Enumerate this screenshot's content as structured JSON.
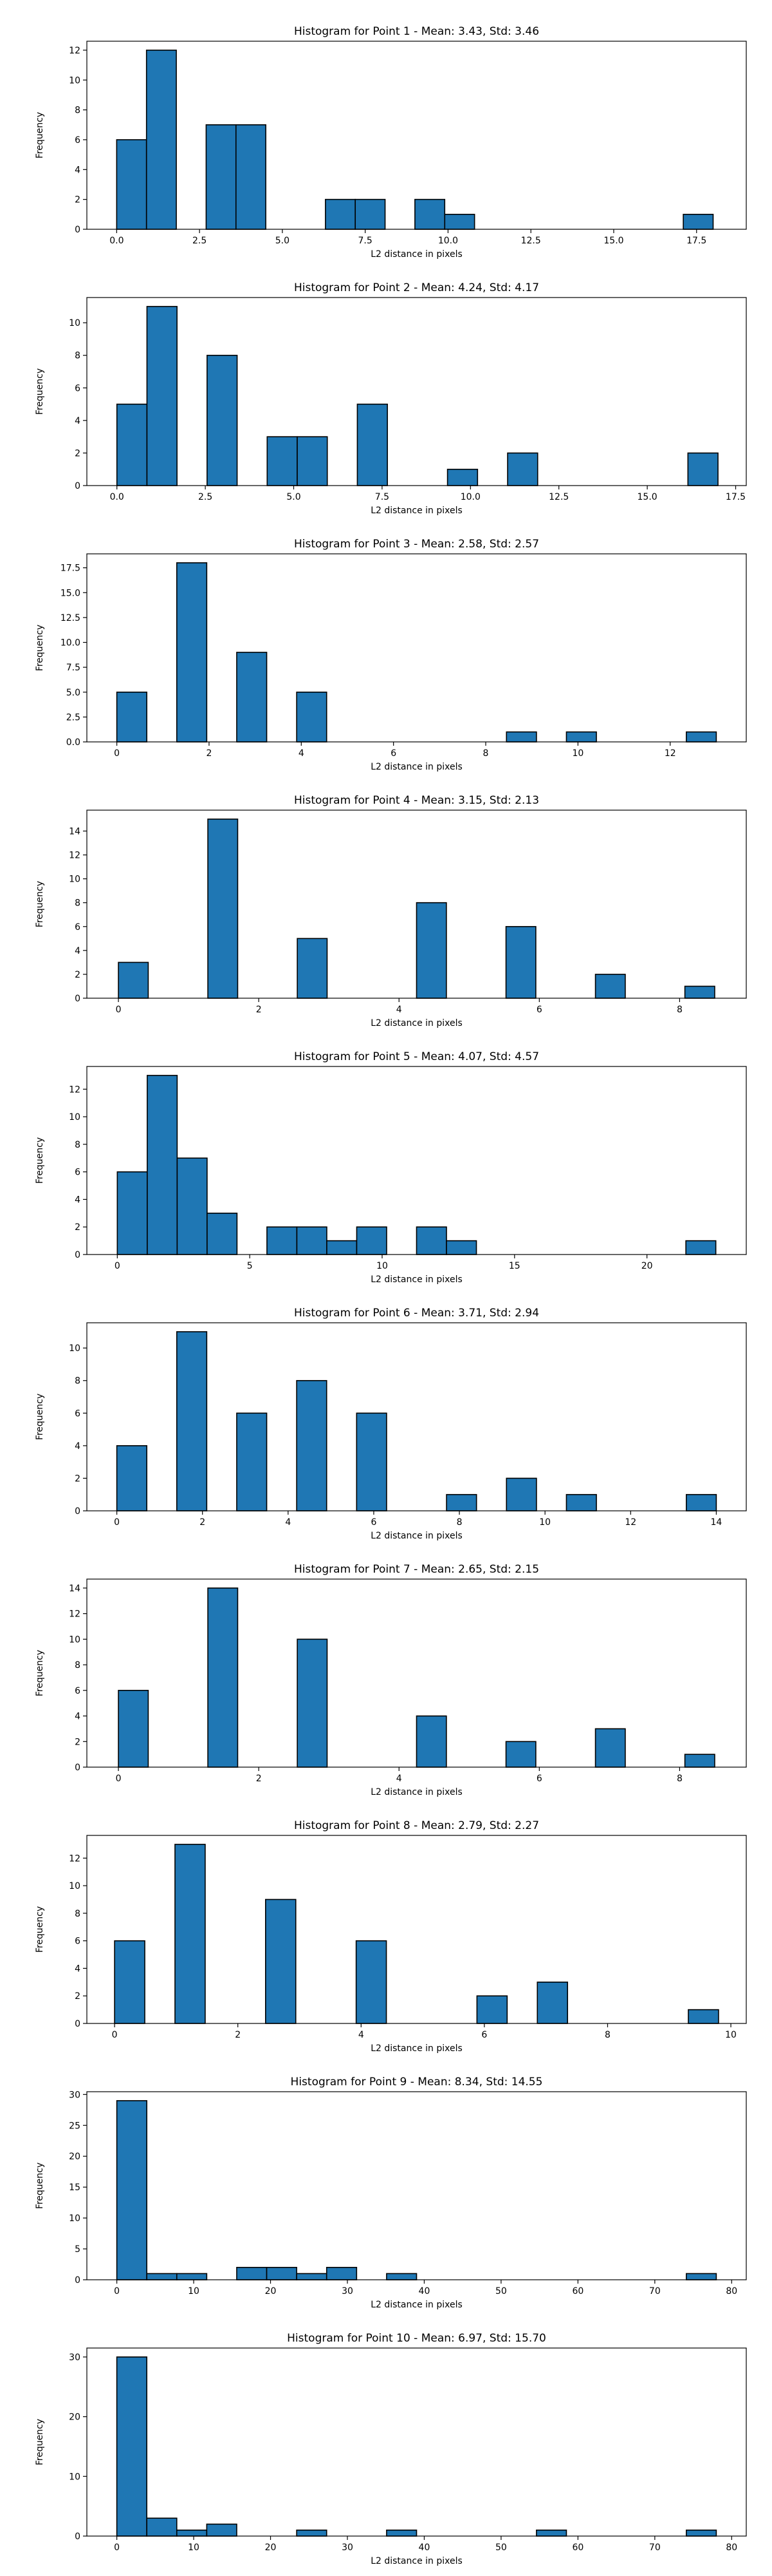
{
  "figure": {
    "background": "#ffffff",
    "bar_color": "#1f77b4",
    "bar_edge_color": "#000000"
  },
  "chart_data": [
    {
      "type": "bar",
      "title": "Histogram for Point 1 - Mean: 3.43, Std: 3.46",
      "xlabel": "L2 distance in pixels",
      "ylabel": "Frequency",
      "xlim": [
        -0.9,
        19.0
      ],
      "ylim": [
        0,
        12.6
      ],
      "xticks": [
        0.0,
        2.5,
        5.0,
        7.5,
        10.0,
        12.5,
        15.0,
        17.5
      ],
      "xticklabels": [
        "0.0",
        "2.5",
        "5.0",
        "7.5",
        "10.0",
        "12.5",
        "15.0",
        "17.5"
      ],
      "yticks": [
        0,
        2,
        4,
        6,
        8,
        10,
        12
      ],
      "yticklabels": [
        "0",
        "2",
        "4",
        "6",
        "8",
        "10",
        "12"
      ],
      "bin_edges": [
        0,
        0.9,
        1.8,
        2.7,
        3.6,
        4.5,
        5.4,
        6.3,
        7.2,
        8.1,
        9.0,
        9.9,
        10.8,
        11.7,
        12.6,
        13.5,
        14.4,
        15.3,
        16.2,
        17.1,
        18.0
      ],
      "values": [
        6,
        12,
        0,
        7,
        7,
        0,
        0,
        2,
        2,
        0,
        2,
        1,
        0,
        0,
        0,
        0,
        0,
        0,
        0,
        1
      ]
    },
    {
      "type": "bar",
      "title": "Histogram for Point 2 - Mean: 4.24, Std: 4.17",
      "xlabel": "L2 distance in pixels",
      "ylabel": "Frequency",
      "xlim": [
        -0.85,
        17.8
      ],
      "ylim": [
        0,
        11.55
      ],
      "xticks": [
        0.0,
        2.5,
        5.0,
        7.5,
        10.0,
        12.5,
        15.0,
        17.5
      ],
      "xticklabels": [
        "0.0",
        "2.5",
        "5.0",
        "7.5",
        "10.0",
        "12.5",
        "15.0",
        "17.5"
      ],
      "yticks": [
        0,
        2,
        4,
        6,
        8,
        10
      ],
      "yticklabels": [
        "0",
        "2",
        "4",
        "6",
        "8",
        "10"
      ],
      "bin_edges": [
        0,
        0.85,
        1.7,
        2.55,
        3.4,
        4.25,
        5.1,
        5.95,
        6.8,
        7.65,
        8.5,
        9.35,
        10.2,
        11.05,
        11.9,
        12.75,
        13.6,
        14.45,
        15.3,
        16.15,
        17.0
      ],
      "values": [
        5,
        11,
        0,
        8,
        0,
        3,
        3,
        0,
        5,
        0,
        0,
        1,
        0,
        2,
        0,
        0,
        0,
        0,
        0,
        2
      ]
    },
    {
      "type": "bar",
      "title": "Histogram for Point 3 - Mean: 2.58, Std: 2.57",
      "xlabel": "L2 distance in pixels",
      "ylabel": "Frequency",
      "xlim": [
        -0.65,
        13.65
      ],
      "ylim": [
        0,
        18.9
      ],
      "xticks": [
        0,
        2,
        4,
        6,
        8,
        10,
        12
      ],
      "xticklabels": [
        "0",
        "2",
        "4",
        "6",
        "8",
        "10",
        "12"
      ],
      "yticks": [
        0.0,
        2.5,
        5.0,
        7.5,
        10.0,
        12.5,
        15.0,
        17.5
      ],
      "yticklabels": [
        "0.0",
        "2.5",
        "5.0",
        "7.5",
        "10.0",
        "12.5",
        "15.0",
        "17.5"
      ],
      "bin_edges": [
        0,
        0.65,
        1.3,
        1.95,
        2.6,
        3.25,
        3.9,
        4.55,
        5.2,
        5.85,
        6.5,
        7.15,
        7.8,
        8.45,
        9.1,
        9.75,
        10.4,
        11.05,
        11.7,
        12.35,
        13.0
      ],
      "values": [
        5,
        0,
        18,
        0,
        9,
        0,
        5,
        0,
        0,
        0,
        0,
        0,
        0,
        1,
        0,
        1,
        0,
        0,
        0,
        1
      ]
    },
    {
      "type": "bar",
      "title": "Histogram for Point 4 - Mean: 3.15, Std: 2.13",
      "xlabel": "L2 distance in pixels",
      "ylabel": "Frequency",
      "xlim": [
        -0.45,
        8.95
      ],
      "ylim": [
        0,
        15.75
      ],
      "xticks": [
        0,
        2,
        4,
        6,
        8
      ],
      "xticklabels": [
        "0",
        "2",
        "4",
        "6",
        "8"
      ],
      "yticks": [
        0,
        2,
        4,
        6,
        8,
        10,
        12,
        14
      ],
      "yticklabels": [
        "0",
        "2",
        "4",
        "6",
        "8",
        "10",
        "12",
        "14"
      ],
      "bin_edges": [
        0,
        0.425,
        0.85,
        1.275,
        1.7,
        2.125,
        2.55,
        2.975,
        3.4,
        3.825,
        4.25,
        4.675,
        5.1,
        5.525,
        5.95,
        6.375,
        6.8,
        7.225,
        7.65,
        8.075,
        8.5
      ],
      "values": [
        3,
        0,
        0,
        15,
        0,
        0,
        5,
        0,
        0,
        0,
        8,
        0,
        0,
        6,
        0,
        0,
        2,
        0,
        0,
        1
      ]
    },
    {
      "type": "bar",
      "title": "Histogram for Point 5 - Mean: 4.07, Std: 4.57",
      "xlabel": "L2 distance in pixels",
      "ylabel": "Frequency",
      "xlim": [
        -1.15,
        23.75
      ],
      "ylim": [
        0,
        13.65
      ],
      "xticks": [
        0,
        5,
        10,
        15,
        20
      ],
      "xticklabels": [
        "0",
        "5",
        "10",
        "15",
        "20"
      ],
      "yticks": [
        0,
        2,
        4,
        6,
        8,
        10,
        12
      ],
      "yticklabels": [
        "0",
        "2",
        "4",
        "6",
        "8",
        "10",
        "12"
      ],
      "bin_edges": [
        0,
        1.13,
        2.26,
        3.39,
        4.52,
        5.65,
        6.78,
        7.91,
        9.04,
        10.17,
        11.3,
        12.43,
        13.56,
        14.69,
        15.82,
        16.95,
        18.08,
        19.21,
        20.34,
        21.47,
        22.6
      ],
      "values": [
        6,
        13,
        7,
        3,
        0,
        2,
        2,
        1,
        2,
        0,
        2,
        1,
        0,
        0,
        0,
        0,
        0,
        0,
        0,
        1
      ]
    },
    {
      "type": "bar",
      "title": "Histogram for Point 6 - Mean: 3.71, Std: 2.94",
      "xlabel": "L2 distance in pixels",
      "ylabel": "Frequency",
      "xlim": [
        -0.7,
        14.7
      ],
      "ylim": [
        0,
        11.55
      ],
      "xticks": [
        0,
        2,
        4,
        6,
        8,
        10,
        12,
        14
      ],
      "xticklabels": [
        "0",
        "2",
        "4",
        "6",
        "8",
        "10",
        "12",
        "14"
      ],
      "yticks": [
        0,
        2,
        4,
        6,
        8,
        10
      ],
      "yticklabels": [
        "0",
        "2",
        "4",
        "6",
        "8",
        "10"
      ],
      "bin_edges": [
        0,
        0.7,
        1.4,
        2.1,
        2.8,
        3.5,
        4.2,
        4.9,
        5.6,
        6.3,
        7.0,
        7.7,
        8.4,
        9.1,
        9.8,
        10.5,
        11.2,
        11.9,
        12.6,
        13.3,
        14.0
      ],
      "values": [
        4,
        0,
        11,
        0,
        6,
        0,
        8,
        0,
        6,
        0,
        0,
        1,
        0,
        2,
        0,
        1,
        0,
        0,
        0,
        1
      ]
    },
    {
      "type": "bar",
      "title": "Histogram for Point 7 - Mean: 2.65, Std: 2.15",
      "xlabel": "L2 distance in pixels",
      "ylabel": "Frequency",
      "xlim": [
        -0.45,
        8.95
      ],
      "ylim": [
        0,
        14.7
      ],
      "xticks": [
        0,
        2,
        4,
        6,
        8
      ],
      "xticklabels": [
        "0",
        "2",
        "4",
        "6",
        "8"
      ],
      "yticks": [
        0,
        2,
        4,
        6,
        8,
        10,
        12,
        14
      ],
      "yticklabels": [
        "0",
        "2",
        "4",
        "6",
        "8",
        "10",
        "12",
        "14"
      ],
      "bin_edges": [
        0,
        0.425,
        0.85,
        1.275,
        1.7,
        2.125,
        2.55,
        2.975,
        3.4,
        3.825,
        4.25,
        4.675,
        5.1,
        5.525,
        5.95,
        6.375,
        6.8,
        7.225,
        7.65,
        8.075,
        8.5
      ],
      "values": [
        6,
        0,
        0,
        14,
        0,
        0,
        10,
        0,
        0,
        0,
        4,
        0,
        0,
        2,
        0,
        0,
        3,
        0,
        0,
        1
      ]
    },
    {
      "type": "bar",
      "title": "Histogram for Point 8 - Mean: 2.79, Std: 2.27",
      "xlabel": "L2 distance in pixels",
      "ylabel": "Frequency",
      "xlim": [
        -0.45,
        10.25
      ],
      "ylim": [
        0,
        13.65
      ],
      "xticks": [
        0,
        2,
        4,
        6,
        8,
        10
      ],
      "xticklabels": [
        "0",
        "2",
        "4",
        "6",
        "8",
        "10"
      ],
      "yticks": [
        0,
        2,
        4,
        6,
        8,
        10,
        12
      ],
      "yticklabels": [
        "0",
        "2",
        "4",
        "6",
        "8",
        "10",
        "12"
      ],
      "bin_edges": [
        0,
        0.49,
        0.98,
        1.47,
        1.96,
        2.45,
        2.94,
        3.43,
        3.92,
        4.41,
        4.9,
        5.39,
        5.88,
        6.37,
        6.86,
        7.35,
        7.84,
        8.33,
        8.82,
        9.31,
        9.8
      ],
      "values": [
        6,
        0,
        13,
        0,
        0,
        9,
        0,
        0,
        6,
        0,
        0,
        0,
        2,
        0,
        3,
        0,
        0,
        0,
        0,
        1
      ]
    },
    {
      "type": "bar",
      "title": "Histogram for Point 9 - Mean: 8.34, Std: 14.55",
      "xlabel": "L2 distance in pixels",
      "ylabel": "Frequency",
      "xlim": [
        -3.9,
        81.9
      ],
      "ylim": [
        0,
        30.45
      ],
      "xticks": [
        0,
        10,
        20,
        30,
        40,
        50,
        60,
        70,
        80
      ],
      "xticklabels": [
        "0",
        "10",
        "20",
        "30",
        "40",
        "50",
        "60",
        "70",
        "80"
      ],
      "yticks": [
        0,
        5,
        10,
        15,
        20,
        25,
        30
      ],
      "yticklabels": [
        "0",
        "5",
        "10",
        "15",
        "20",
        "25",
        "30"
      ],
      "bin_edges": [
        0,
        3.9,
        7.8,
        11.7,
        15.6,
        19.5,
        23.4,
        27.3,
        31.2,
        35.1,
        39.0,
        42.9,
        46.8,
        50.7,
        54.6,
        58.5,
        62.4,
        66.3,
        70.2,
        74.1,
        78.0
      ],
      "values": [
        29,
        1,
        1,
        0,
        2,
        2,
        1,
        2,
        0,
        1,
        0,
        0,
        0,
        0,
        0,
        0,
        0,
        0,
        0,
        1
      ]
    },
    {
      "type": "bar",
      "title": "Histogram for Point 10 - Mean: 6.97, Std: 15.70",
      "xlabel": "L2 distance in pixels",
      "ylabel": "Frequency",
      "xlim": [
        -3.9,
        81.9
      ],
      "ylim": [
        0,
        31.5
      ],
      "xticks": [
        0,
        10,
        20,
        30,
        40,
        50,
        60,
        70,
        80
      ],
      "xticklabels": [
        "0",
        "10",
        "20",
        "30",
        "40",
        "50",
        "60",
        "70",
        "80"
      ],
      "yticks": [
        0,
        10,
        20,
        30
      ],
      "yticklabels": [
        "0",
        "10",
        "20",
        "30"
      ],
      "bin_edges": [
        0,
        3.9,
        7.8,
        11.7,
        15.6,
        19.5,
        23.4,
        27.3,
        31.2,
        35.1,
        39.0,
        42.9,
        46.8,
        50.7,
        54.6,
        58.5,
        62.4,
        66.3,
        70.2,
        74.1,
        78.0
      ],
      "values": [
        30,
        3,
        1,
        2,
        0,
        0,
        1,
        0,
        0,
        1,
        0,
        0,
        0,
        0,
        1,
        0,
        0,
        0,
        0,
        1
      ]
    }
  ]
}
